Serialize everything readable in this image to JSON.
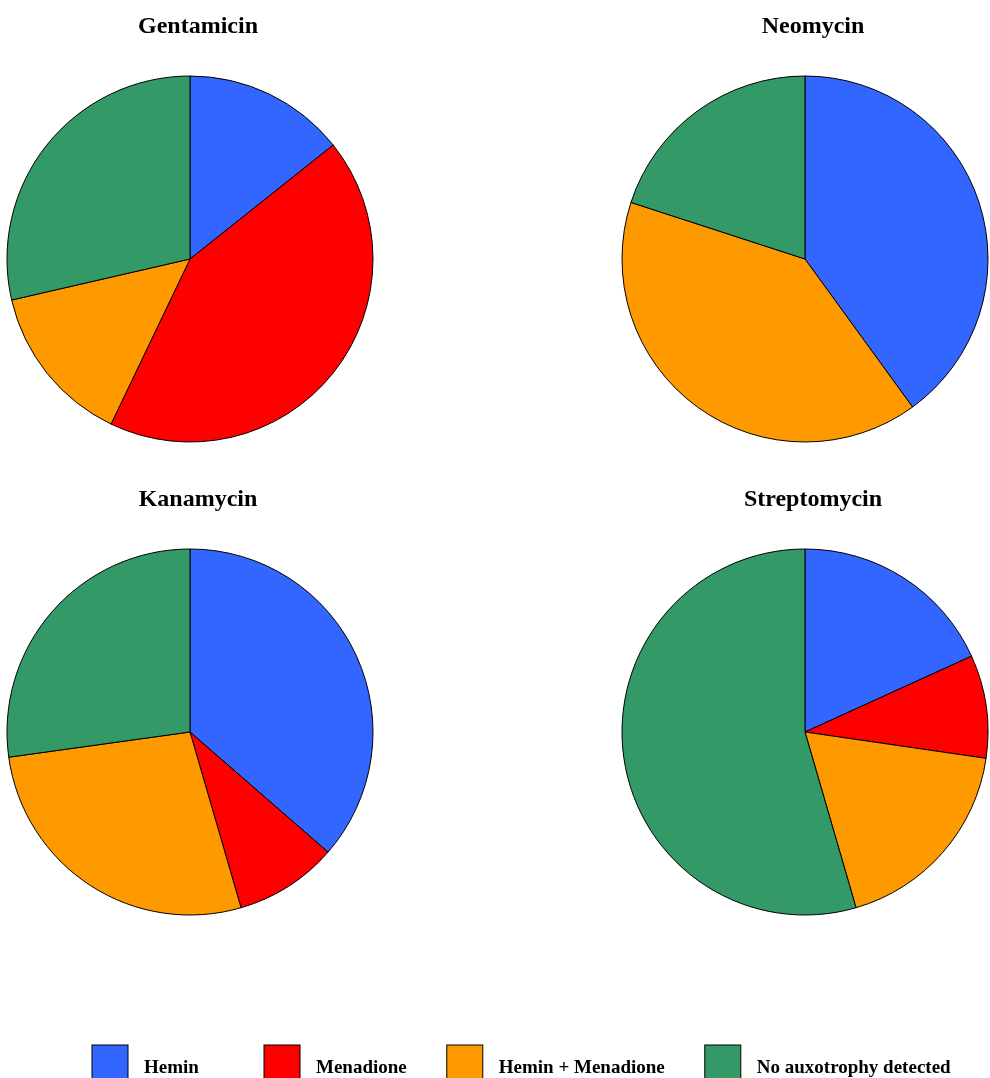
{
  "chart_data": [
    {
      "type": "pie",
      "title": "Gentamicin",
      "categories": [
        "Hemin",
        "Menadione",
        "Hemin + Menadione",
        "No auxotrophy detected"
      ],
      "values": [
        14.3,
        42.8,
        14.3,
        28.6
      ],
      "colors": [
        "#3366ff",
        "#ff0000",
        "#ff9900",
        "#339966"
      ],
      "legend": "bottom"
    },
    {
      "type": "pie",
      "title": "Neomycin",
      "categories": [
        null,
        null,
        null
      ],
      "values": [
        40,
        40,
        20
      ],
      "colors": [
        "#3366ff",
        "#ff9900",
        "#339966"
      ]
    },
    {
      "type": "pie",
      "title": "Kanamycin",
      "categories": [
        null,
        null,
        null,
        null
      ],
      "values": [
        36.4,
        9.1,
        27.3,
        27.2
      ],
      "colors": [
        "#3366ff",
        "#ff0000",
        "#ff9900",
        "#339966"
      ]
    },
    {
      "type": "pie",
      "title": "Streptomycin",
      "categories": [
        null,
        null,
        null,
        null
      ],
      "values": [
        18.2,
        9.1,
        18.2,
        54.5
      ],
      "colors": [
        "#3366ff",
        "#ff0000",
        "#ff9900",
        "#339966"
      ]
    }
  ]
}
